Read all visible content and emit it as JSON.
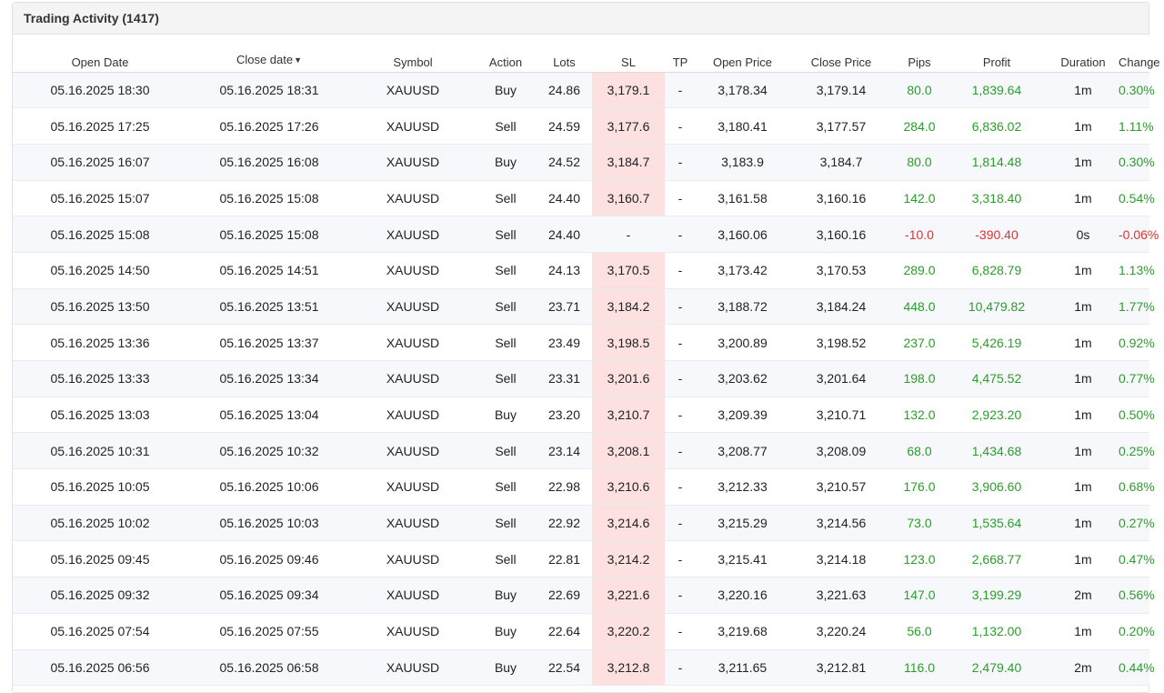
{
  "panel": {
    "title": "Trading Activity (1417)"
  },
  "colors": {
    "positive": "#2a9d2a",
    "negative": "#e03131",
    "sl_highlight": "#fde0e0"
  },
  "table": {
    "columns": [
      "Open Date",
      "Close date",
      "Symbol",
      "Action",
      "Lots",
      "SL",
      "TP",
      "Open Price",
      "Close Price",
      "Pips",
      "Profit",
      "Duration",
      "Change"
    ],
    "sort_icon": "caret-down-icon",
    "rows": [
      {
        "open_date": "05.16.2025 18:30",
        "close_date": "05.16.2025 18:31",
        "symbol": "XAUUSD",
        "action": "Buy",
        "lots": "24.86",
        "sl": "3,179.1",
        "tp": "-",
        "open_price": "3,178.34",
        "close_price": "3,179.14",
        "pips": "80.0",
        "profit": "1,839.64",
        "duration": "1m",
        "change": "0.30%",
        "status": "pos"
      },
      {
        "open_date": "05.16.2025 17:25",
        "close_date": "05.16.2025 17:26",
        "symbol": "XAUUSD",
        "action": "Sell",
        "lots": "24.59",
        "sl": "3,177.6",
        "tp": "-",
        "open_price": "3,180.41",
        "close_price": "3,177.57",
        "pips": "284.0",
        "profit": "6,836.02",
        "duration": "1m",
        "change": "1.11%",
        "status": "pos"
      },
      {
        "open_date": "05.16.2025 16:07",
        "close_date": "05.16.2025 16:08",
        "symbol": "XAUUSD",
        "action": "Buy",
        "lots": "24.52",
        "sl": "3,184.7",
        "tp": "-",
        "open_price": "3,183.9",
        "close_price": "3,184.7",
        "pips": "80.0",
        "profit": "1,814.48",
        "duration": "1m",
        "change": "0.30%",
        "status": "pos"
      },
      {
        "open_date": "05.16.2025 15:07",
        "close_date": "05.16.2025 15:08",
        "symbol": "XAUUSD",
        "action": "Sell",
        "lots": "24.40",
        "sl": "3,160.7",
        "tp": "-",
        "open_price": "3,161.58",
        "close_price": "3,160.16",
        "pips": "142.0",
        "profit": "3,318.40",
        "duration": "1m",
        "change": "0.54%",
        "status": "pos"
      },
      {
        "open_date": "05.16.2025 15:08",
        "close_date": "05.16.2025 15:08",
        "symbol": "XAUUSD",
        "action": "Sell",
        "lots": "24.40",
        "sl": "-",
        "tp": "-",
        "open_price": "3,160.06",
        "close_price": "3,160.16",
        "pips": "-10.0",
        "profit": "-390.40",
        "duration": "0s",
        "change": "-0.06%",
        "status": "neg"
      },
      {
        "open_date": "05.16.2025 14:50",
        "close_date": "05.16.2025 14:51",
        "symbol": "XAUUSD",
        "action": "Sell",
        "lots": "24.13",
        "sl": "3,170.5",
        "tp": "-",
        "open_price": "3,173.42",
        "close_price": "3,170.53",
        "pips": "289.0",
        "profit": "6,828.79",
        "duration": "1m",
        "change": "1.13%",
        "status": "pos"
      },
      {
        "open_date": "05.16.2025 13:50",
        "close_date": "05.16.2025 13:51",
        "symbol": "XAUUSD",
        "action": "Sell",
        "lots": "23.71",
        "sl": "3,184.2",
        "tp": "-",
        "open_price": "3,188.72",
        "close_price": "3,184.24",
        "pips": "448.0",
        "profit": "10,479.82",
        "duration": "1m",
        "change": "1.77%",
        "status": "pos"
      },
      {
        "open_date": "05.16.2025 13:36",
        "close_date": "05.16.2025 13:37",
        "symbol": "XAUUSD",
        "action": "Sell",
        "lots": "23.49",
        "sl": "3,198.5",
        "tp": "-",
        "open_price": "3,200.89",
        "close_price": "3,198.52",
        "pips": "237.0",
        "profit": "5,426.19",
        "duration": "1m",
        "change": "0.92%",
        "status": "pos"
      },
      {
        "open_date": "05.16.2025 13:33",
        "close_date": "05.16.2025 13:34",
        "symbol": "XAUUSD",
        "action": "Sell",
        "lots": "23.31",
        "sl": "3,201.6",
        "tp": "-",
        "open_price": "3,203.62",
        "close_price": "3,201.64",
        "pips": "198.0",
        "profit": "4,475.52",
        "duration": "1m",
        "change": "0.77%",
        "status": "pos"
      },
      {
        "open_date": "05.16.2025 13:03",
        "close_date": "05.16.2025 13:04",
        "symbol": "XAUUSD",
        "action": "Buy",
        "lots": "23.20",
        "sl": "3,210.7",
        "tp": "-",
        "open_price": "3,209.39",
        "close_price": "3,210.71",
        "pips": "132.0",
        "profit": "2,923.20",
        "duration": "1m",
        "change": "0.50%",
        "status": "pos"
      },
      {
        "open_date": "05.16.2025 10:31",
        "close_date": "05.16.2025 10:32",
        "symbol": "XAUUSD",
        "action": "Sell",
        "lots": "23.14",
        "sl": "3,208.1",
        "tp": "-",
        "open_price": "3,208.77",
        "close_price": "3,208.09",
        "pips": "68.0",
        "profit": "1,434.68",
        "duration": "1m",
        "change": "0.25%",
        "status": "pos"
      },
      {
        "open_date": "05.16.2025 10:05",
        "close_date": "05.16.2025 10:06",
        "symbol": "XAUUSD",
        "action": "Sell",
        "lots": "22.98",
        "sl": "3,210.6",
        "tp": "-",
        "open_price": "3,212.33",
        "close_price": "3,210.57",
        "pips": "176.0",
        "profit": "3,906.60",
        "duration": "1m",
        "change": "0.68%",
        "status": "pos"
      },
      {
        "open_date": "05.16.2025 10:02",
        "close_date": "05.16.2025 10:03",
        "symbol": "XAUUSD",
        "action": "Sell",
        "lots": "22.92",
        "sl": "3,214.6",
        "tp": "-",
        "open_price": "3,215.29",
        "close_price": "3,214.56",
        "pips": "73.0",
        "profit": "1,535.64",
        "duration": "1m",
        "change": "0.27%",
        "status": "pos"
      },
      {
        "open_date": "05.16.2025 09:45",
        "close_date": "05.16.2025 09:46",
        "symbol": "XAUUSD",
        "action": "Sell",
        "lots": "22.81",
        "sl": "3,214.2",
        "tp": "-",
        "open_price": "3,215.41",
        "close_price": "3,214.18",
        "pips": "123.0",
        "profit": "2,668.77",
        "duration": "1m",
        "change": "0.47%",
        "status": "pos"
      },
      {
        "open_date": "05.16.2025 09:32",
        "close_date": "05.16.2025 09:34",
        "symbol": "XAUUSD",
        "action": "Buy",
        "lots": "22.69",
        "sl": "3,221.6",
        "tp": "-",
        "open_price": "3,220.16",
        "close_price": "3,221.63",
        "pips": "147.0",
        "profit": "3,199.29",
        "duration": "2m",
        "change": "0.56%",
        "status": "pos"
      },
      {
        "open_date": "05.16.2025 07:54",
        "close_date": "05.16.2025 07:55",
        "symbol": "XAUUSD",
        "action": "Buy",
        "lots": "22.64",
        "sl": "3,220.2",
        "tp": "-",
        "open_price": "3,219.68",
        "close_price": "3,220.24",
        "pips": "56.0",
        "profit": "1,132.00",
        "duration": "1m",
        "change": "0.20%",
        "status": "pos"
      },
      {
        "open_date": "05.16.2025 06:56",
        "close_date": "05.16.2025 06:58",
        "symbol": "XAUUSD",
        "action": "Buy",
        "lots": "22.54",
        "sl": "3,212.8",
        "tp": "-",
        "open_price": "3,211.65",
        "close_price": "3,212.81",
        "pips": "116.0",
        "profit": "2,479.40",
        "duration": "2m",
        "change": "0.44%",
        "status": "pos"
      }
    ]
  }
}
